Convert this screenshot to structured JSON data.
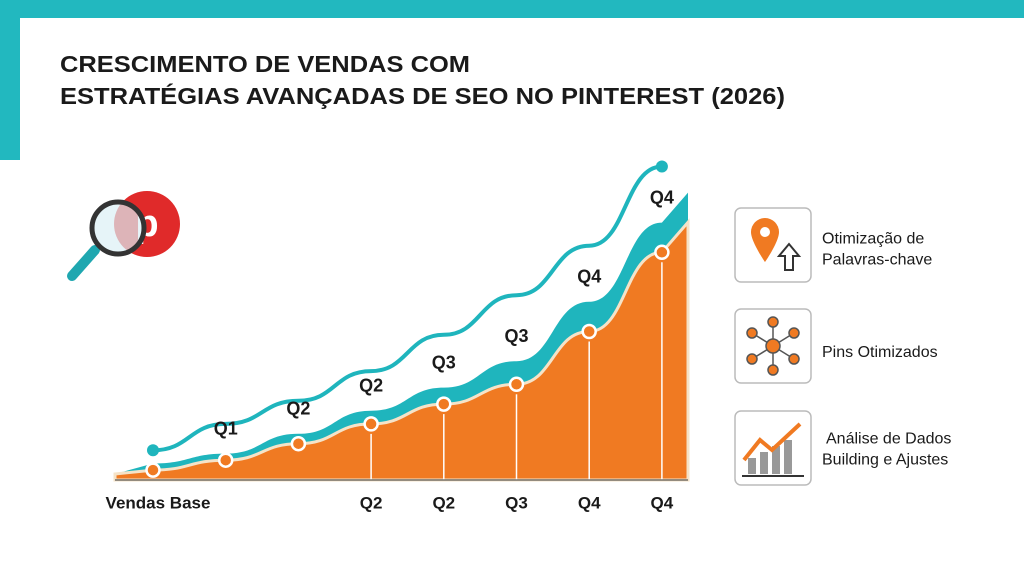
{
  "chart_data": {
    "type": "area",
    "title_lines": [
      "CRESCIMENTO DE VENDAS COM",
      "ESTRATÉGIAS AVANÇADAS DE SEO NO PINTEREST (2026)"
    ],
    "categories": [
      "Vendas Base",
      null,
      null,
      "Q2",
      "Q2",
      "Q3",
      "Q4",
      "Q4"
    ],
    "area_values": [
      3,
      6,
      11,
      17,
      23,
      29,
      45,
      69
    ],
    "band_values": [
      5,
      8,
      14,
      21,
      28,
      36,
      54,
      78
    ],
    "line_values": [
      9,
      17,
      24,
      33,
      44,
      56,
      71,
      95
    ],
    "point_labels": [
      null,
      "Q1",
      "Q2",
      "Q2",
      "Q3",
      "Q3",
      "Q4",
      "Q4"
    ],
    "area_color": "#f07a22",
    "band_color": "#1fb5bd",
    "line_color": "#1fb5bd",
    "ylim": [
      0,
      100
    ],
    "side_items": [
      {
        "lines": [
          "Otimização de",
          "Palavras-chave"
        ]
      },
      {
        "lines": [
          "Pins Otimizados"
        ]
      },
      {
        "lines": [
          "Análise de Dados",
          "Building e Ajustes"
        ]
      }
    ]
  }
}
